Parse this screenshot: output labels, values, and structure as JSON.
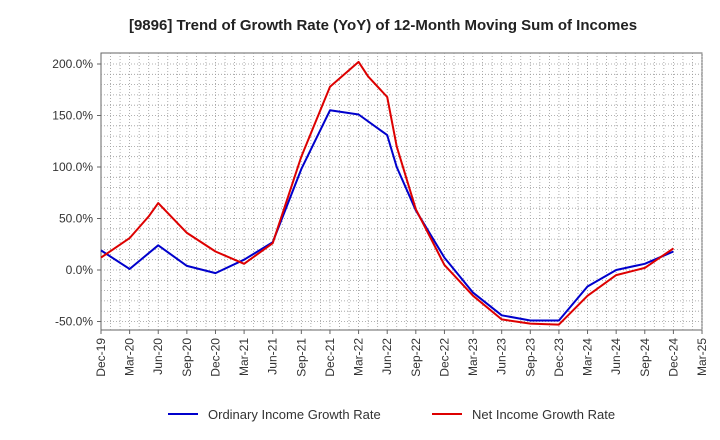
{
  "chart_data": {
    "type": "line",
    "title": "[9896]  Trend of Growth Rate (YoY) of 12-Month Moving Sum of Incomes",
    "xlabel": "",
    "ylabel": "",
    "ylim": [
      -58,
      210
    ],
    "yticks": [
      -50,
      0,
      50,
      100,
      150,
      200
    ],
    "ytick_labels": [
      "-50.0%",
      "0.0%",
      "50.0%",
      "100.0%",
      "150.0%",
      "200.0%"
    ],
    "x_tick_labels": [
      "Dec-19",
      "Mar-20",
      "Jun-20",
      "Sep-20",
      "Dec-20",
      "Mar-21",
      "Jun-21",
      "Sep-21",
      "Dec-21",
      "Mar-22",
      "Jun-22",
      "Sep-22",
      "Dec-22",
      "Mar-23",
      "Jun-23",
      "Sep-23",
      "Dec-23",
      "Mar-24",
      "Jun-24",
      "Sep-24",
      "Dec-24",
      "Mar-25"
    ],
    "n_months": 64,
    "grid": true,
    "legend_position": "bottom",
    "series": [
      {
        "name": "Ordinary Income Growth Rate",
        "color": "#0000cc",
        "points": [
          [
            0,
            19
          ],
          [
            3,
            1
          ],
          [
            6,
            24
          ],
          [
            9,
            4
          ],
          [
            12,
            -3
          ],
          [
            15,
            10
          ],
          [
            18,
            27
          ],
          [
            21,
            98
          ],
          [
            24,
            155
          ],
          [
            27,
            151
          ],
          [
            30,
            131
          ],
          [
            31,
            100
          ],
          [
            33,
            58
          ],
          [
            36,
            12
          ],
          [
            39,
            -22
          ],
          [
            42,
            -44
          ],
          [
            45,
            -49
          ],
          [
            48,
            -49
          ],
          [
            51,
            -16
          ],
          [
            54,
            0
          ],
          [
            57,
            6
          ],
          [
            60,
            18
          ]
        ]
      },
      {
        "name": "Net Income Growth Rate",
        "color": "#dd0000",
        "points": [
          [
            0,
            12
          ],
          [
            3,
            31
          ],
          [
            5,
            52
          ],
          [
            6,
            65
          ],
          [
            9,
            36
          ],
          [
            12,
            18
          ],
          [
            15,
            6
          ],
          [
            18,
            26
          ],
          [
            21,
            110
          ],
          [
            24,
            178
          ],
          [
            27,
            202
          ],
          [
            28,
            188
          ],
          [
            30,
            168
          ],
          [
            31,
            120
          ],
          [
            33,
            59
          ],
          [
            36,
            5
          ],
          [
            39,
            -25
          ],
          [
            42,
            -48
          ],
          [
            45,
            -52
          ],
          [
            48,
            -53
          ],
          [
            51,
            -25
          ],
          [
            54,
            -5
          ],
          [
            57,
            2
          ],
          [
            60,
            21
          ]
        ]
      }
    ]
  }
}
